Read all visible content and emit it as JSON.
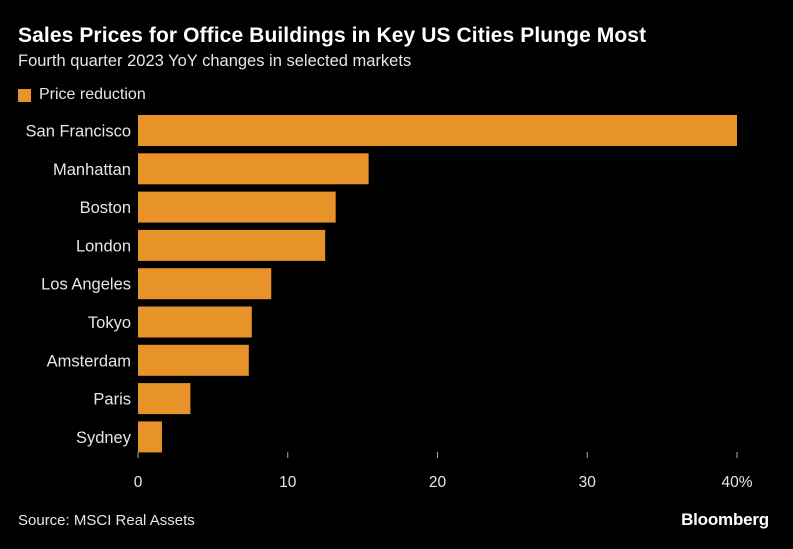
{
  "colors": {
    "background": "#000000",
    "bar": "#E8922A",
    "text": "#FFFFFF",
    "muted": "#E6E6E6",
    "tick": "#AAAAAA"
  },
  "header": {
    "title": "Sales Prices for Office Buildings in Key US Cities Plunge Most",
    "subtitle": "Fourth quarter 2023 YoY changes in selected markets"
  },
  "footer": {
    "source": "Source: MSCI Real Assets",
    "brand": "Bloomberg"
  },
  "chart_data": {
    "type": "bar",
    "orientation": "horizontal",
    "title": "Sales Prices for Office Buildings in Key US Cities Plunge Most",
    "subtitle": "Fourth quarter 2023 YoY changes in selected markets",
    "categories": [
      "San Francisco",
      "Manhattan",
      "Boston",
      "London",
      "Los Angeles",
      "Tokyo",
      "Amsterdam",
      "Paris",
      "Sydney"
    ],
    "series": [
      {
        "name": "Price reduction",
        "values": [
          40,
          15.4,
          13.2,
          12.5,
          8.9,
          7.6,
          7.4,
          3.5,
          1.6
        ]
      }
    ],
    "xlim": [
      0,
      40
    ],
    "xticks": [
      0,
      10,
      20,
      30,
      40
    ],
    "xtick_labels": [
      "0",
      "10",
      "20",
      "30",
      "40%"
    ],
    "grid": false,
    "legend": "top-left"
  }
}
